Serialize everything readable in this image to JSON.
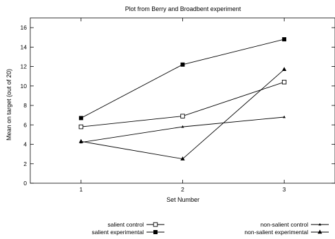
{
  "chart_data": {
    "type": "line",
    "title": "Plot from Berry and Broadbent experiment",
    "xlabel": "Set Number",
    "ylabel": "Mean on target (out of 20)",
    "x": [
      1,
      2,
      3
    ],
    "x_ticks": [
      "1",
      "2",
      "3"
    ],
    "xlim": [
      0.5,
      3.5
    ],
    "y_ticks": [
      "0",
      "2",
      "4",
      "6",
      "8",
      "10",
      "12",
      "14",
      "16"
    ],
    "ylim": [
      0,
      17
    ],
    "grid": false,
    "legend_position": "bottom",
    "series": [
      {
        "name": "salient control",
        "marker": "open-square",
        "values": [
          5.8,
          6.9,
          10.4
        ]
      },
      {
        "name": "salient experimental",
        "marker": "filled-square",
        "values": [
          6.7,
          12.2,
          14.8
        ]
      },
      {
        "name": "non-salient control",
        "marker": "small-triangle",
        "values": [
          4.2,
          5.8,
          6.8
        ]
      },
      {
        "name": "non-salient experimental",
        "marker": "filled-triangle",
        "values": [
          4.3,
          2.5,
          11.7
        ]
      }
    ]
  }
}
